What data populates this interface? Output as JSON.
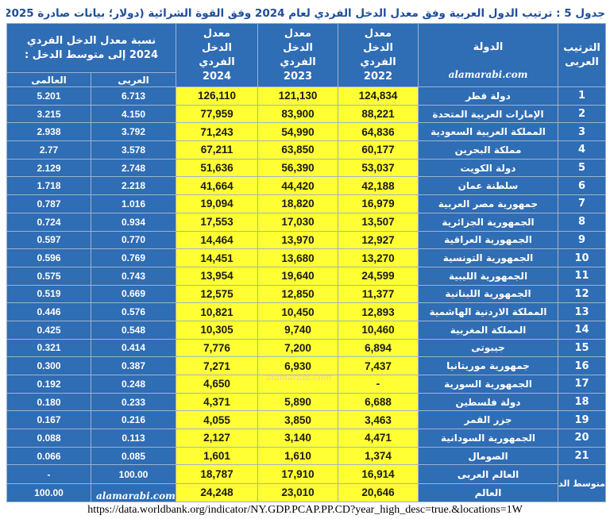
{
  "title": "جدول 5 :   ترتيب الدول العربية وفق معدل الدخل الفردي لعام 2024 وفق القوة الشرائية (دولار؛ بيانات صادرة 2025)",
  "header": {
    "rank": "الترتيب العربى",
    "country": "الدولة",
    "watermark": "alamarabi.com",
    "y2022": "معدل الدخل الفردي  2022",
    "y2023": "معدل الدخل الفردي 2023",
    "y2024": "معدل الدخل الفردي 2024",
    "ratio": "نسبة معدل الدخل الفردي 2024  إلى متوسط الدخل :",
    "arab": "العربى",
    "world": "العالمى"
  },
  "rows": [
    {
      "rank": "1",
      "country": "دولة قطر",
      "y2022": "124,834",
      "y2023": "121,130",
      "y2024": "126,110",
      "arab": "6.713",
      "world": "5.201"
    },
    {
      "rank": "2",
      "country": "الإمارات العربية المتحدة",
      "y2022": "88,221",
      "y2023": "83,900",
      "y2024": "77,959",
      "arab": "4.150",
      "world": "3.215"
    },
    {
      "rank": "3",
      "country": "المملكة العربية السعودية",
      "y2022": "64,836",
      "y2023": "54,990",
      "y2024": "71,243",
      "arab": "3.792",
      "world": "2.938"
    },
    {
      "rank": "4",
      "country": "مملكة البحرين",
      "y2022": "60,177",
      "y2023": "63,850",
      "y2024": "67,211",
      "arab": "3.578",
      "world": "2.77"
    },
    {
      "rank": "5",
      "country": "دولة الكويت",
      "y2022": "53,037",
      "y2023": "56,390",
      "y2024": "51,636",
      "arab": "2.748",
      "world": "2.129"
    },
    {
      "rank": "6",
      "country": "سلطنة عمان",
      "y2022": "42,188",
      "y2023": "44,420",
      "y2024": "41,664",
      "arab": "2.218",
      "world": "1.718"
    },
    {
      "rank": "7",
      "country": "جمهورية مصر العربية",
      "y2022": "16,979",
      "y2023": "18,820",
      "y2024": "19,094",
      "arab": "1.016",
      "world": "0.787"
    },
    {
      "rank": "8",
      "country": "الجمهورية الجزائرية",
      "y2022": "13,507",
      "y2023": "17,030",
      "y2024": "17,553",
      "arab": "0.934",
      "world": "0.724"
    },
    {
      "rank": "9",
      "country": "الجمهورية العراقية",
      "y2022": "12,927",
      "y2023": "13,970",
      "y2024": "14,464",
      "arab": "0.770",
      "world": "0.597"
    },
    {
      "rank": "10",
      "country": "الجمهورية التونسية",
      "y2022": "13,270",
      "y2023": "13,680",
      "y2024": "14,451",
      "arab": "0.769",
      "world": "0.596"
    },
    {
      "rank": "11",
      "country": "الجمهورية الليبية",
      "y2022": "24,599",
      "y2023": "19,640",
      "y2024": "13,954",
      "arab": "0.743",
      "world": "0.575"
    },
    {
      "rank": "12",
      "country": "الجمهورية اللبنانية",
      "y2022": "11,377",
      "y2023": "12,850",
      "y2024": "12,575",
      "arab": "0.669",
      "world": "0.519"
    },
    {
      "rank": "13",
      "country": "المملكة الاردنية الهاشمية",
      "y2022": "12,893",
      "y2023": "10,450",
      "y2024": "10,821",
      "arab": "0.576",
      "world": "0.446"
    },
    {
      "rank": "14",
      "country": "المملكة المغربية",
      "y2022": "10,460",
      "y2023": "9,740",
      "y2024": "10,305",
      "arab": "0.548",
      "world": "0.425"
    },
    {
      "rank": "15",
      "country": "جيبوتى",
      "y2022": "6,894",
      "y2023": "7,200",
      "y2024": "7,776",
      "arab": "0.414",
      "world": "0.321"
    },
    {
      "rank": "16",
      "country": "جمهورية موريتانيا",
      "y2022": "7,437",
      "y2023": "6,930",
      "y2024": "7,271",
      "arab": "0.387",
      "world": "0.300"
    },
    {
      "rank": "17",
      "country": "الجمهورية السورية",
      "y2022": "-",
      "y2023": "",
      "y2024": "4,650",
      "arab": "0.248",
      "world": "0.192"
    },
    {
      "rank": "18",
      "country": "دولة فلسطين",
      "y2022": "6,688",
      "y2023": "5,890",
      "y2024": "4,371",
      "arab": "0.233",
      "world": "0.180"
    },
    {
      "rank": "19",
      "country": "جزر القمر",
      "y2022": "3,463",
      "y2023": "3,850",
      "y2024": "4,055",
      "arab": "0.216",
      "world": "0.167"
    },
    {
      "rank": "20",
      "country": "الجمهورية السودانية",
      "y2022": "4,471",
      "y2023": "3,140",
      "y2024": "2,127",
      "arab": "0.113",
      "world": "0.088"
    },
    {
      "rank": "21",
      "country": "الصومال",
      "y2022": "1,374",
      "y2023": "1,610",
      "y2024": "1,601",
      "arab": "0.085",
      "world": "0.066"
    }
  ],
  "avg_label": "متوسط الدخل الفردي",
  "arab_world": {
    "country": "العالم العربى",
    "y2022": "16,914",
    "y2023": "17,910",
    "y2024": "18,787",
    "arab": "100.00",
    "world": "-"
  },
  "world": {
    "country": "العالم",
    "y2022": "20,646",
    "y2023": "23,010",
    "y2024": "24,248",
    "world": "100.00"
  },
  "watermark_mid": "alamarabi.com",
  "watermark_foot": "alamarabi.com",
  "source": "https://data.worldbank.org/indicator/NY.GDP.PCAP.PP.CD?year_high_desc=true.&locations=1W"
}
